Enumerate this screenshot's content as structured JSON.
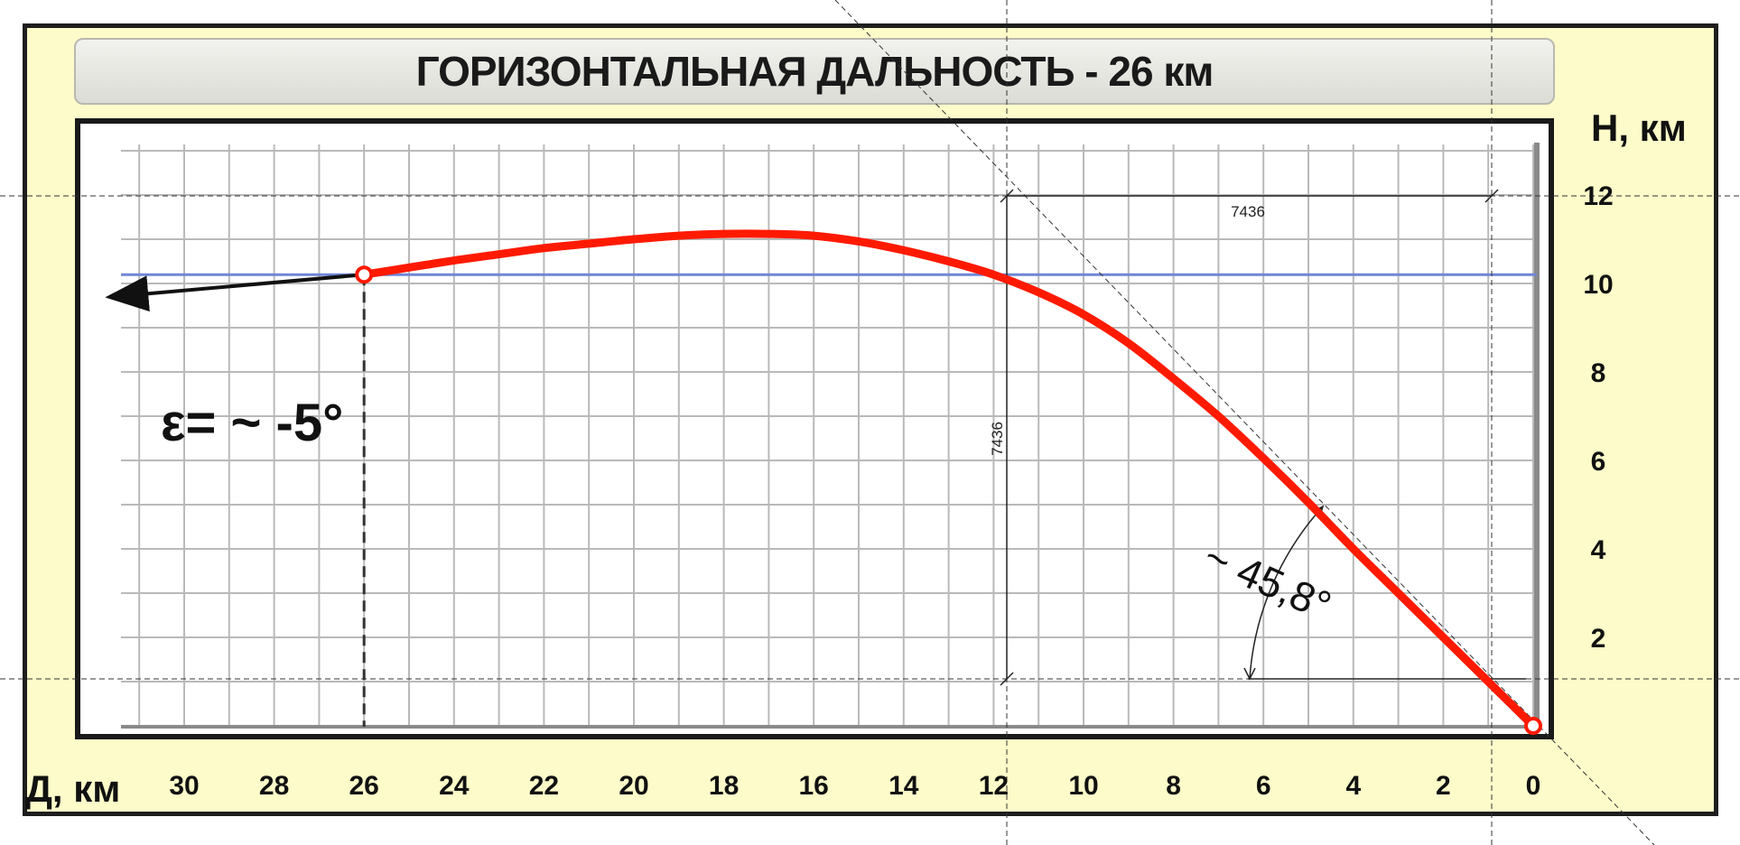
{
  "chart_data": {
    "type": "line",
    "title": "ГОРИЗОНТАЛЬНАЯ ДАЛЬНОСТЬ  -  26 км",
    "xlabel": "Д, км",
    "ylabel": "Н, км",
    "x_reversed": true,
    "xlim": [
      0,
      33
    ],
    "ylim": [
      0,
      13
    ],
    "x_ticks": [
      30,
      28,
      26,
      24,
      22,
      20,
      18,
      16,
      14,
      12,
      10,
      8,
      6,
      4,
      2,
      0
    ],
    "y_ticks": [
      12,
      10,
      8,
      6,
      4,
      2
    ],
    "grid": true,
    "series": [
      {
        "color": "#ff1a00",
        "x": [
          0,
          1,
          2,
          3,
          4,
          5,
          6,
          7,
          8,
          9,
          10,
          11,
          12,
          13,
          14,
          15,
          16,
          17,
          18,
          19,
          20,
          21,
          22,
          23,
          24,
          25,
          26
        ],
        "y": [
          0,
          1.0,
          2.0,
          3.0,
          4.0,
          5.05,
          6.05,
          7.0,
          7.85,
          8.65,
          9.3,
          9.8,
          10.2,
          10.5,
          10.75,
          10.95,
          11.08,
          11.12,
          11.12,
          11.08,
          11.0,
          10.9,
          10.8,
          10.66,
          10.52,
          10.36,
          10.2
        ]
      }
    ],
    "reference_line": {
      "y": 10.2,
      "color": "#6f86d6"
    },
    "marker_points": [
      {
        "x": 26,
        "y": 10.2
      },
      {
        "x": 0,
        "y": 0
      }
    ],
    "vertical_dashed_line": {
      "x": 26
    },
    "arrow": {
      "from": [
        26,
        10.2
      ],
      "to": [
        31.6,
        9.7
      ]
    },
    "annotations": {
      "elevation": "ε= ~ -5°",
      "impact_angle": "~ 45,8°",
      "dimension_horizontal": "7436",
      "dimension_vertical": "7436"
    }
  }
}
